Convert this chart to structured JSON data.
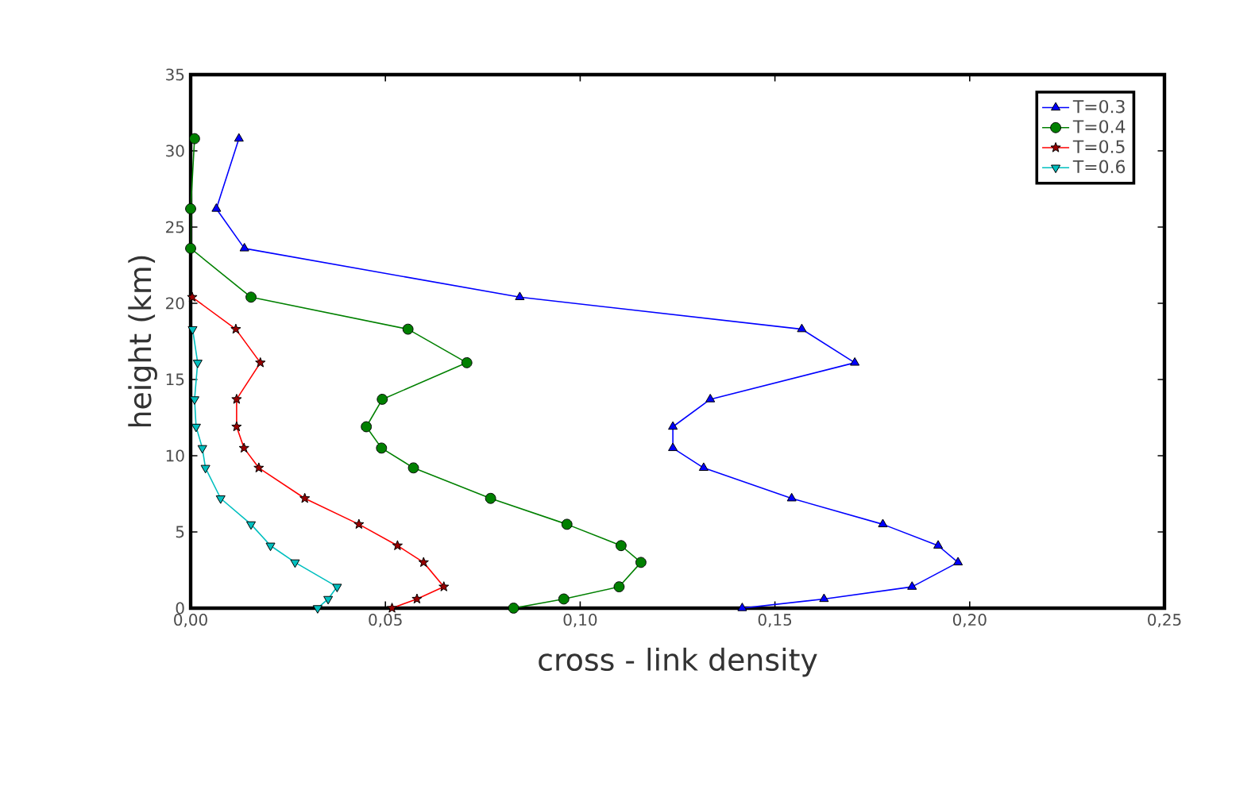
{
  "chart_data": {
    "type": "line",
    "xlabel": "cross - link density",
    "ylabel": "height (km)",
    "xlim": [
      0,
      0.25
    ],
    "ylim": [
      0,
      35
    ],
    "xticks": [
      {
        "value": 0,
        "label": "0,00"
      },
      {
        "value": 0.05,
        "label": "0,05"
      },
      {
        "value": 0.1,
        "label": "0,10"
      },
      {
        "value": 0.15,
        "label": "0,15"
      },
      {
        "value": 0.2,
        "label": "0,20"
      },
      {
        "value": 0.25,
        "label": "0,25"
      }
    ],
    "yticks": [
      0,
      5,
      10,
      15,
      20,
      25,
      30,
      35
    ],
    "legend": "top right",
    "grid": false,
    "series": [
      {
        "name": "T=0.3",
        "color": "#0000ff",
        "marker": "triangle",
        "x": [
          0.0124,
          0.0066,
          0.0138,
          0.0845,
          0.1569,
          0.1705,
          0.1334,
          0.1238,
          0.1238,
          0.1317,
          0.1543,
          0.1777,
          0.1919,
          0.197,
          0.1852,
          0.1626,
          0.1416
        ],
        "values": [
          30.8,
          26.2,
          23.6,
          20.4,
          18.3,
          16.1,
          13.7,
          11.9,
          10.5,
          9.2,
          7.2,
          5.5,
          4.1,
          3.0,
          1.4,
          0.6,
          0
        ]
      },
      {
        "name": "T=0.4",
        "color": "#008000",
        "marker": "circle",
        "x": [
          0.001,
          0.0,
          0.0,
          0.0155,
          0.0558,
          0.0709,
          0.0492,
          0.0451,
          0.049,
          0.0572,
          0.077,
          0.0966,
          0.1105,
          0.1156,
          0.11,
          0.0958,
          0.0829
        ],
        "values": [
          30.8,
          26.2,
          23.6,
          20.4,
          18.3,
          16.1,
          13.7,
          11.9,
          10.5,
          9.2,
          7.2,
          5.5,
          4.1,
          3.0,
          1.4,
          0.6,
          0
        ]
      },
      {
        "name": "T=0.5",
        "color": "#ff0000",
        "marker": "star",
        "x": [
          0.0004,
          0.0116,
          0.0179,
          0.0118,
          0.0118,
          0.0137,
          0.0175,
          0.0293,
          0.0432,
          0.0531,
          0.0598,
          0.065,
          0.0581,
          0.0517
        ],
        "values": [
          20.4,
          18.3,
          16.1,
          13.7,
          11.9,
          10.5,
          9.2,
          7.2,
          5.5,
          4.1,
          3.0,
          1.4,
          0.6,
          0
        ]
      },
      {
        "name": "T=0.6",
        "color": "#00bfbf",
        "marker": "triangle-down",
        "x": [
          0.0005,
          0.0018,
          0.001,
          0.0014,
          0.003,
          0.0038,
          0.0077,
          0.0155,
          0.0205,
          0.0268,
          0.0376,
          0.0353,
          0.0326
        ],
        "values": [
          18.3,
          16.1,
          13.7,
          11.9,
          10.5,
          9.2,
          7.2,
          5.5,
          4.1,
          3.0,
          1.4,
          0.6,
          0
        ]
      }
    ]
  }
}
